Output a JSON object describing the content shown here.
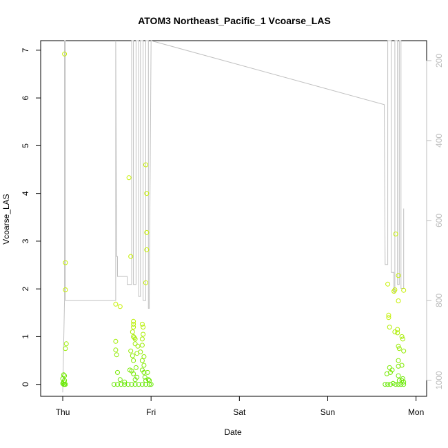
{
  "chart_data": {
    "type": "scatter",
    "title": "ATOM3 Northeast_Pacific_1 Vcoarse_LAS",
    "xlabel": "Date",
    "ylabel": "Vcoarse_LAS",
    "x_ticks": [
      {
        "label": "Thu",
        "value": 0
      },
      {
        "label": "Fri",
        "value": 1
      },
      {
        "label": "Sat",
        "value": 2
      },
      {
        "label": "Sun",
        "value": 3
      },
      {
        "label": "Mon",
        "value": 4
      }
    ],
    "xlim": [
      -0.25,
      4.12
    ],
    "ylim": [
      -0.25,
      7.2
    ],
    "y_ticks": [
      0,
      1,
      2,
      3,
      4,
      5,
      6,
      7
    ],
    "right_axis": {
      "ticks": [
        200,
        400,
        600,
        800,
        1000
      ],
      "lim": [
        1040,
        150
      ],
      "color": "#bdbdbd"
    },
    "grid": false,
    "series": [
      {
        "marker": "circle-open",
        "color_range": [
          "#c6f000",
          "#66e800"
        ],
        "points": [
          [
            0.02,
            6.92
          ],
          [
            0.03,
            2.55
          ],
          [
            0.03,
            1.98
          ],
          [
            0.04,
            0.85
          ],
          [
            0.03,
            0.75
          ],
          [
            0.01,
            0.2
          ],
          [
            0.02,
            0.18
          ],
          [
            0.0,
            0.12
          ],
          [
            0.02,
            0.08
          ],
          [
            0.01,
            0.05
          ],
          [
            0.0,
            0.02
          ],
          [
            0.01,
            0.0
          ],
          [
            0.02,
            0.0
          ],
          [
            0.03,
            0.0
          ],
          [
            0.6,
            1.68
          ],
          [
            0.65,
            1.63
          ],
          [
            0.6,
            0.9
          ],
          [
            0.6,
            0.72
          ],
          [
            0.61,
            0.62
          ],
          [
            0.62,
            0.25
          ],
          [
            0.65,
            0.1
          ],
          [
            0.7,
            0.05
          ],
          [
            0.75,
            4.33
          ],
          [
            0.77,
            2.68
          ],
          [
            0.77,
            0.7
          ],
          [
            0.76,
            0.3
          ],
          [
            0.78,
            0.28
          ],
          [
            0.79,
            0.6
          ],
          [
            0.8,
            0.5
          ],
          [
            0.8,
            1.0
          ],
          [
            0.79,
            1.1
          ],
          [
            0.8,
            1.32
          ],
          [
            0.8,
            1.26
          ],
          [
            0.8,
            1.2
          ],
          [
            0.81,
            0.98
          ],
          [
            0.82,
            0.95
          ],
          [
            0.82,
            0.85
          ],
          [
            0.84,
            0.65
          ],
          [
            0.85,
            0.8
          ],
          [
            0.83,
            0.35
          ],
          [
            0.8,
            0.22
          ],
          [
            0.84,
            0.15
          ],
          [
            0.82,
            0.1
          ],
          [
            0.88,
            0.68
          ],
          [
            0.9,
            0.5
          ],
          [
            0.9,
            0.3
          ],
          [
            0.9,
            1.26
          ],
          [
            0.91,
            1.2
          ],
          [
            0.91,
            1.05
          ],
          [
            0.9,
            0.95
          ],
          [
            0.9,
            0.82
          ],
          [
            0.92,
            0.58
          ],
          [
            0.92,
            0.4
          ],
          [
            0.92,
            0.25
          ],
          [
            0.93,
            0.15
          ],
          [
            0.94,
            0.08
          ],
          [
            0.94,
            4.6
          ],
          [
            0.95,
            4.0
          ],
          [
            0.95,
            3.18
          ],
          [
            0.95,
            2.82
          ],
          [
            0.94,
            2.13
          ],
          [
            0.96,
            0.25
          ],
          [
            0.97,
            0.1
          ],
          [
            0.98,
            0.08
          ],
          [
            0.58,
            0.0
          ],
          [
            0.62,
            0.0
          ],
          [
            0.66,
            0.0
          ],
          [
            0.7,
            0.0
          ],
          [
            0.74,
            0.0
          ],
          [
            0.78,
            0.0
          ],
          [
            0.82,
            0.0
          ],
          [
            0.86,
            0.0
          ],
          [
            0.9,
            0.0
          ],
          [
            0.94,
            0.0
          ],
          [
            0.98,
            0.0
          ],
          [
            1.0,
            0.0
          ],
          [
            3.67,
            0.22
          ],
          [
            3.68,
            2.1
          ],
          [
            3.69,
            1.45
          ],
          [
            3.69,
            1.4
          ],
          [
            3.7,
            1.2
          ],
          [
            3.7,
            0.35
          ],
          [
            3.71,
            0.25
          ],
          [
            3.73,
            0.3
          ],
          [
            3.75,
            1.95
          ],
          [
            3.76,
            1.98
          ],
          [
            3.76,
            1.1
          ],
          [
            3.77,
            3.15
          ],
          [
            3.79,
            1.08
          ],
          [
            3.79,
            1.15
          ],
          [
            3.8,
            2.28
          ],
          [
            3.8,
            1.75
          ],
          [
            3.8,
            0.8
          ],
          [
            3.81,
            0.75
          ],
          [
            3.8,
            0.5
          ],
          [
            3.8,
            0.38
          ],
          [
            3.8,
            0.18
          ],
          [
            3.81,
            0.08
          ],
          [
            3.84,
            1.0
          ],
          [
            3.85,
            0.95
          ],
          [
            3.84,
            0.4
          ],
          [
            3.86,
            1.97
          ],
          [
            3.86,
            0.7
          ],
          [
            3.85,
            0.12
          ],
          [
            3.86,
            0.05
          ],
          [
            3.84,
            0.08
          ],
          [
            3.65,
            0.0
          ],
          [
            3.68,
            0.0
          ],
          [
            3.71,
            0.0
          ],
          [
            3.74,
            0.02
          ],
          [
            3.77,
            0.0
          ],
          [
            3.8,
            0.0
          ],
          [
            3.83,
            0.0
          ],
          [
            3.86,
            0.0
          ]
        ]
      }
    ],
    "line_series": {
      "color": "#c0c0c0",
      "axis": "right",
      "points": [
        [
          0.0,
          1030
        ],
        [
          0.02,
          800
        ],
        [
          0.02,
          150
        ],
        [
          0.03,
          150
        ],
        [
          0.03,
          800
        ],
        [
          0.6,
          800
        ],
        [
          0.6,
          150
        ],
        [
          0.61,
          690
        ],
        [
          0.62,
          690
        ],
        [
          0.62,
          740
        ],
        [
          0.73,
          740
        ],
        [
          0.73,
          760
        ],
        [
          0.78,
          760
        ],
        [
          0.78,
          150
        ],
        [
          0.8,
          150
        ],
        [
          0.8,
          760
        ],
        [
          0.83,
          760
        ],
        [
          0.83,
          150
        ],
        [
          0.86,
          150
        ],
        [
          0.86,
          790
        ],
        [
          0.88,
          790
        ],
        [
          0.88,
          150
        ],
        [
          0.91,
          150
        ],
        [
          0.91,
          800
        ],
        [
          0.94,
          800
        ],
        [
          0.94,
          150
        ],
        [
          0.97,
          150
        ],
        [
          0.97,
          820
        ],
        [
          0.98,
          820
        ],
        [
          0.98,
          800
        ],
        [
          1.0,
          150
        ],
        [
          3.64,
          310
        ],
        [
          3.65,
          710
        ],
        [
          3.68,
          710
        ],
        [
          3.68,
          150
        ],
        [
          3.72,
          150
        ],
        [
          3.72,
          730
        ],
        [
          3.75,
          730
        ],
        [
          3.75,
          780
        ],
        [
          3.76,
          780
        ],
        [
          3.76,
          150
        ],
        [
          3.79,
          150
        ],
        [
          3.79,
          760
        ],
        [
          3.81,
          760
        ],
        [
          3.81,
          150
        ],
        [
          3.83,
          150
        ],
        [
          3.83,
          770
        ],
        [
          3.86,
          770
        ],
        [
          3.86,
          570
        ]
      ]
    }
  }
}
